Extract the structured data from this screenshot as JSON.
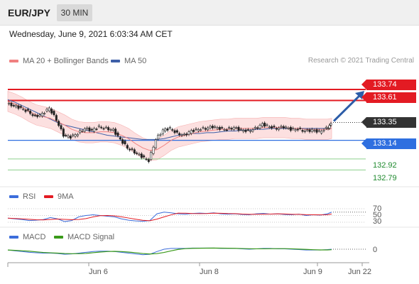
{
  "header": {
    "symbol": "EUR/JPY",
    "timeframe": "30 MIN",
    "datetime": "Wednesday, June 9, 2021 6:03:34 AM CET"
  },
  "legend": {
    "ma20": "MA 20 + Bollinger Bands",
    "ma50": "MA 50",
    "credit": "Research © 2021 Trading Central"
  },
  "colors": {
    "ma20": "#f08080",
    "ma50": "#3e5fa8",
    "resistance": "#e31b23",
    "support": "#2f6fe0",
    "target": "#1f8a2e",
    "rsi": "#3c6ddb",
    "macd": "#3c6ddb",
    "macd_signal": "#3a9a1a"
  },
  "levels": {
    "r2": "133.74",
    "r1": "133.61",
    "current": "133.35",
    "pivot": "133.14",
    "s1": "132.92",
    "s2": "132.79"
  },
  "rsi": {
    "label": "RSI",
    "ma_label": "9MA",
    "level_70": "70",
    "level_50": "50",
    "level_30": "30"
  },
  "macd": {
    "label": "MACD",
    "signal_label": "MACD Signal",
    "zero": "0"
  },
  "xaxis": [
    "Jun 6",
    "Jun 8",
    "Jun 9",
    "Jun 22"
  ],
  "chart_data": {
    "type": "line",
    "title": "EUR/JPY",
    "xlabel": "",
    "ylabel": "",
    "ylim": [
      132.6,
      133.95
    ],
    "x": [
      0,
      10,
      20,
      30,
      40,
      50,
      60,
      70,
      80,
      90,
      100,
      110,
      120,
      130,
      140,
      150,
      160,
      170,
      180,
      190,
      200,
      210,
      220,
      230,
      240,
      250,
      260,
      270,
      280,
      290,
      300,
      310,
      320,
      330,
      340,
      350,
      360,
      370,
      380,
      390,
      400,
      410,
      420,
      430,
      440,
      450,
      456
    ],
    "series": [
      {
        "name": "EUR/JPY",
        "values": [
          133.57,
          133.55,
          133.52,
          133.48,
          133.42,
          133.45,
          133.52,
          133.38,
          133.2,
          133.18,
          133.22,
          133.28,
          133.26,
          133.3,
          133.28,
          133.26,
          133.15,
          133.05,
          133.0,
          132.95,
          132.9,
          133.15,
          133.26,
          133.28,
          133.22,
          133.2,
          133.25,
          133.27,
          133.28,
          133.3,
          133.28,
          133.27,
          133.29,
          133.26,
          133.25,
          133.28,
          133.33,
          133.3,
          133.28,
          133.3,
          133.27,
          133.27,
          133.25,
          133.26,
          133.24,
          133.28,
          133.33
        ]
      },
      {
        "name": "MA 20",
        "values": [
          133.6,
          133.57,
          133.53,
          133.48,
          133.44,
          133.42,
          133.4,
          133.36,
          133.32,
          133.27,
          133.24,
          133.23,
          133.23,
          133.24,
          133.24,
          133.23,
          133.2,
          133.16,
          133.1,
          133.05,
          133.02,
          133.03,
          133.08,
          133.14,
          133.18,
          133.2,
          133.22,
          133.24,
          133.25,
          133.26,
          133.27,
          133.27,
          133.28,
          133.28,
          133.28,
          133.28,
          133.29,
          133.29,
          133.29,
          133.29,
          133.28,
          133.28,
          133.27,
          133.27,
          133.27,
          133.27,
          133.28
        ]
      },
      {
        "name": "MA 50",
        "values": [
          133.62,
          133.59,
          133.55,
          133.51,
          133.47,
          133.43,
          133.39,
          133.35,
          133.32,
          133.3,
          133.28,
          133.26,
          133.24,
          133.22,
          133.2,
          133.19,
          133.18,
          133.17,
          133.16,
          133.15,
          133.15,
          133.15,
          133.16,
          133.18,
          133.2,
          133.21,
          133.22,
          133.22,
          133.23,
          133.23,
          133.24,
          133.25,
          133.25,
          133.26,
          133.26,
          133.27,
          133.27,
          133.28,
          133.28,
          133.28,
          133.28,
          133.28,
          133.28,
          133.28,
          133.28,
          133.28,
          133.28
        ]
      }
    ],
    "forecast": {
      "from": 133.35,
      "to": 133.74
    },
    "rsi_values": [
      42,
      40,
      38,
      35,
      36,
      38,
      44,
      40,
      32,
      35,
      46,
      50,
      52,
      50,
      48,
      46,
      40,
      36,
      34,
      33,
      35,
      55,
      60,
      58,
      55,
      54,
      56,
      57,
      56,
      58,
      55,
      54,
      55,
      53,
      52,
      55,
      56,
      54,
      55,
      53,
      52,
      54,
      50,
      52,
      51,
      55,
      60
    ],
    "macd_values": [
      -0.02,
      -0.04,
      -0.06,
      -0.08,
      -0.09,
      -0.1,
      -0.1,
      -0.11,
      -0.13,
      -0.12,
      -0.1,
      -0.08,
      -0.06,
      -0.05,
      -0.05,
      -0.06,
      -0.08,
      -0.1,
      -0.12,
      -0.14,
      -0.13,
      -0.06,
      0.0,
      0.02,
      0.02,
      0.02,
      0.03,
      0.03,
      0.03,
      0.03,
      0.02,
      0.02,
      0.02,
      0.01,
      0.0,
      0.01,
      0.02,
      0.02,
      0.01,
      0.01,
      0.0,
      -0.01,
      -0.02,
      -0.02,
      -0.02,
      -0.01,
      0.0
    ]
  }
}
